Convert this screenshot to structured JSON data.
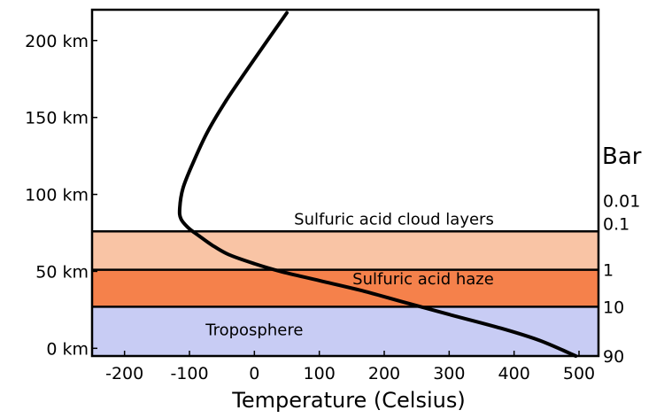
{
  "chart_data": {
    "type": "line",
    "xlabel": "Temperature (Celsius)",
    "x_ticks": [
      -200,
      -100,
      0,
      100,
      200,
      300,
      400,
      500
    ],
    "x_tick_labels": [
      "-200",
      "-100",
      "0",
      "100",
      "200",
      "300",
      "400",
      "500"
    ],
    "xlim": [
      -250,
      530
    ],
    "ylim": [
      -5,
      220
    ],
    "y_ticks": [
      0,
      50,
      100,
      150,
      200
    ],
    "y_tick_labels": [
      "0 km",
      "50 km",
      "100 km",
      "150 km",
      "200 km"
    ],
    "right_axis_title": "Bar",
    "pressure_ticks": [
      {
        "label": "0.01",
        "altitude_km": 96
      },
      {
        "label": "0.1",
        "altitude_km": 81
      },
      {
        "label": "1",
        "altitude_km": 51
      },
      {
        "label": "10",
        "altitude_km": 27
      },
      {
        "label": "90",
        "altitude_km": -5
      }
    ],
    "layers": [
      {
        "name": "Troposphere",
        "from_km": -5,
        "to_km": 27,
        "color": "#c8ccf4"
      },
      {
        "name": "Sulfuric acid haze",
        "from_km": 27,
        "to_km": 51,
        "color": "#f5814b"
      },
      {
        "name": "",
        "from_km": 51,
        "to_km": 76,
        "color": "#f9c4a5"
      }
    ],
    "layer_boundaries_km": [
      27,
      51,
      76
    ],
    "annotations": [
      {
        "text": "Sulfuric acid cloud layers",
        "x": 215,
        "y": 84
      },
      {
        "text": "Sulfuric acid haze",
        "x": 260,
        "y": 45
      },
      {
        "text": "Troposphere",
        "x": 0,
        "y": 12
      }
    ],
    "series": [
      {
        "color": "#000000",
        "points": [
          [
            495,
            -5
          ],
          [
            440,
            5
          ],
          [
            380,
            13
          ],
          [
            300,
            22
          ],
          [
            230,
            30
          ],
          [
            170,
            37
          ],
          [
            100,
            44
          ],
          [
            40,
            50
          ],
          [
            0,
            55
          ],
          [
            -40,
            61
          ],
          [
            -65,
            67
          ],
          [
            -85,
            73
          ],
          [
            -101,
            78
          ],
          [
            -113,
            84
          ],
          [
            -115,
            91
          ],
          [
            -110,
            104
          ],
          [
            -95,
            120
          ],
          [
            -73,
            140
          ],
          [
            -45,
            160
          ],
          [
            -13,
            180
          ],
          [
            20,
            200
          ],
          [
            50,
            218
          ]
        ]
      }
    ]
  }
}
